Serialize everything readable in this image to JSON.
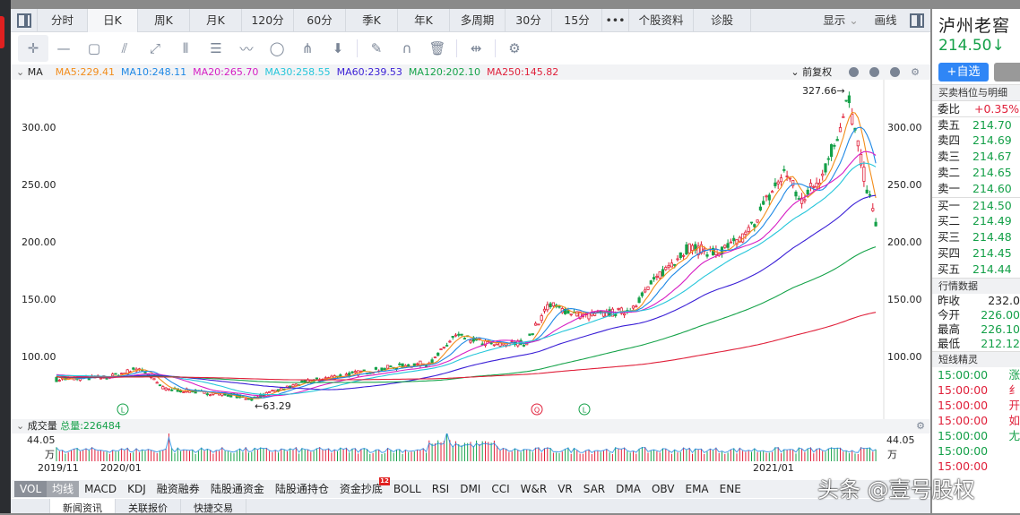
{
  "period_tabs": [
    "分时",
    "日K",
    "周K",
    "月K",
    "120分",
    "60分",
    "季K",
    "年K",
    "多周期",
    "30分",
    "15分",
    "•••",
    "个股资料",
    "诊股"
  ],
  "active_tab": "日K",
  "display_label": "显示",
  "draw_label": "画线",
  "tools": [
    "crosshair-icon",
    "line-icon",
    "rectangle-icon",
    "fan-icon",
    "segment-icon",
    "parallel-lines-icon",
    "fibonacci-icon",
    "wave-icon",
    "circle-icon",
    "pitchfork-icon",
    "arrow-down-icon",
    "eraser-icon",
    "magnet-icon",
    "trash-icon",
    "align-icon",
    "settings-icon"
  ],
  "ma": {
    "label": "MA",
    "items": [
      {
        "text": "MA5:229.41",
        "color": "#f28c1a"
      },
      {
        "text": "MA10:248.11",
        "color": "#1e88e5"
      },
      {
        "text": "MA20:265.70",
        "color": "#d61ec4"
      },
      {
        "text": "MA30:258.55",
        "color": "#26c6da"
      },
      {
        "text": "MA60:239.53",
        "color": "#3a1fd6"
      },
      {
        "text": "MA120:202.10",
        "color": "#16a34a"
      },
      {
        "text": "MA250:145.82",
        "color": "#e0203a"
      }
    ],
    "adjust": "前复权"
  },
  "price_axis": [
    "300.00",
    "250.00",
    "200.00",
    "150.00",
    "100.00"
  ],
  "high_label": "327.66→",
  "low_label": "←63.29",
  "markers": [
    "L",
    "Q",
    "L"
  ],
  "volume": {
    "label": "成交量",
    "total": "总量:226484",
    "max": "44.05",
    "unit": "万"
  },
  "dates": [
    "2019/11",
    "2020/01",
    "2021/01"
  ],
  "indicators": [
    "VOL",
    "均线",
    "MACD",
    "KDJ",
    "融资融券",
    "陆股通资金",
    "陆股通持仓",
    "资金抄底",
    "BOLL",
    "RSI",
    "DMI",
    "CCI",
    "W&R",
    "VR",
    "SAR",
    "DMA",
    "OBV",
    "EMA",
    "ENE"
  ],
  "indicator_badge": "12",
  "bottom_tabs": [
    "新闻资讯",
    "关联报价",
    "快捷交易"
  ],
  "stock": {
    "name": "泸州老窖",
    "price": "214.50↓",
    "add_label": "+自选"
  },
  "orderbook": {
    "title": "买卖档位与明细",
    "ratio_label": "委比",
    "ratio": "+0.35%",
    "asks": [
      {
        "k": "卖五",
        "v": "214.70"
      },
      {
        "k": "卖四",
        "v": "214.69"
      },
      {
        "k": "卖三",
        "v": "214.67"
      },
      {
        "k": "卖二",
        "v": "214.65"
      },
      {
        "k": "卖一",
        "v": "214.60"
      }
    ],
    "bids": [
      {
        "k": "买一",
        "v": "214.50"
      },
      {
        "k": "买二",
        "v": "214.49"
      },
      {
        "k": "买三",
        "v": "214.48"
      },
      {
        "k": "买四",
        "v": "214.45"
      },
      {
        "k": "买五",
        "v": "214.44"
      }
    ]
  },
  "quote": {
    "title": "行情数据",
    "rows": [
      {
        "k": "昨收",
        "v": "232.0"
      },
      {
        "k": "今开",
        "v": "226.00"
      },
      {
        "k": "最高",
        "v": "226.10"
      },
      {
        "k": "最低",
        "v": "212.12"
      }
    ]
  },
  "sprite": {
    "title": "短线精灵",
    "rows": [
      {
        "t": "15:00:00",
        "s": "涨",
        "c": "g"
      },
      {
        "t": "15:00:00",
        "s": "纟",
        "c": "rd"
      },
      {
        "t": "15:00:00",
        "s": "开",
        "c": "rd"
      },
      {
        "t": "15:00:00",
        "s": "如",
        "c": "rd"
      },
      {
        "t": "15:00:00",
        "s": "尢",
        "c": "g"
      },
      {
        "t": "15:00:00",
        "s": "",
        "c": "g"
      },
      {
        "t": "15:00:00",
        "s": "",
        "c": "rd"
      }
    ]
  },
  "watermark": "头条 @壹号股权"
}
